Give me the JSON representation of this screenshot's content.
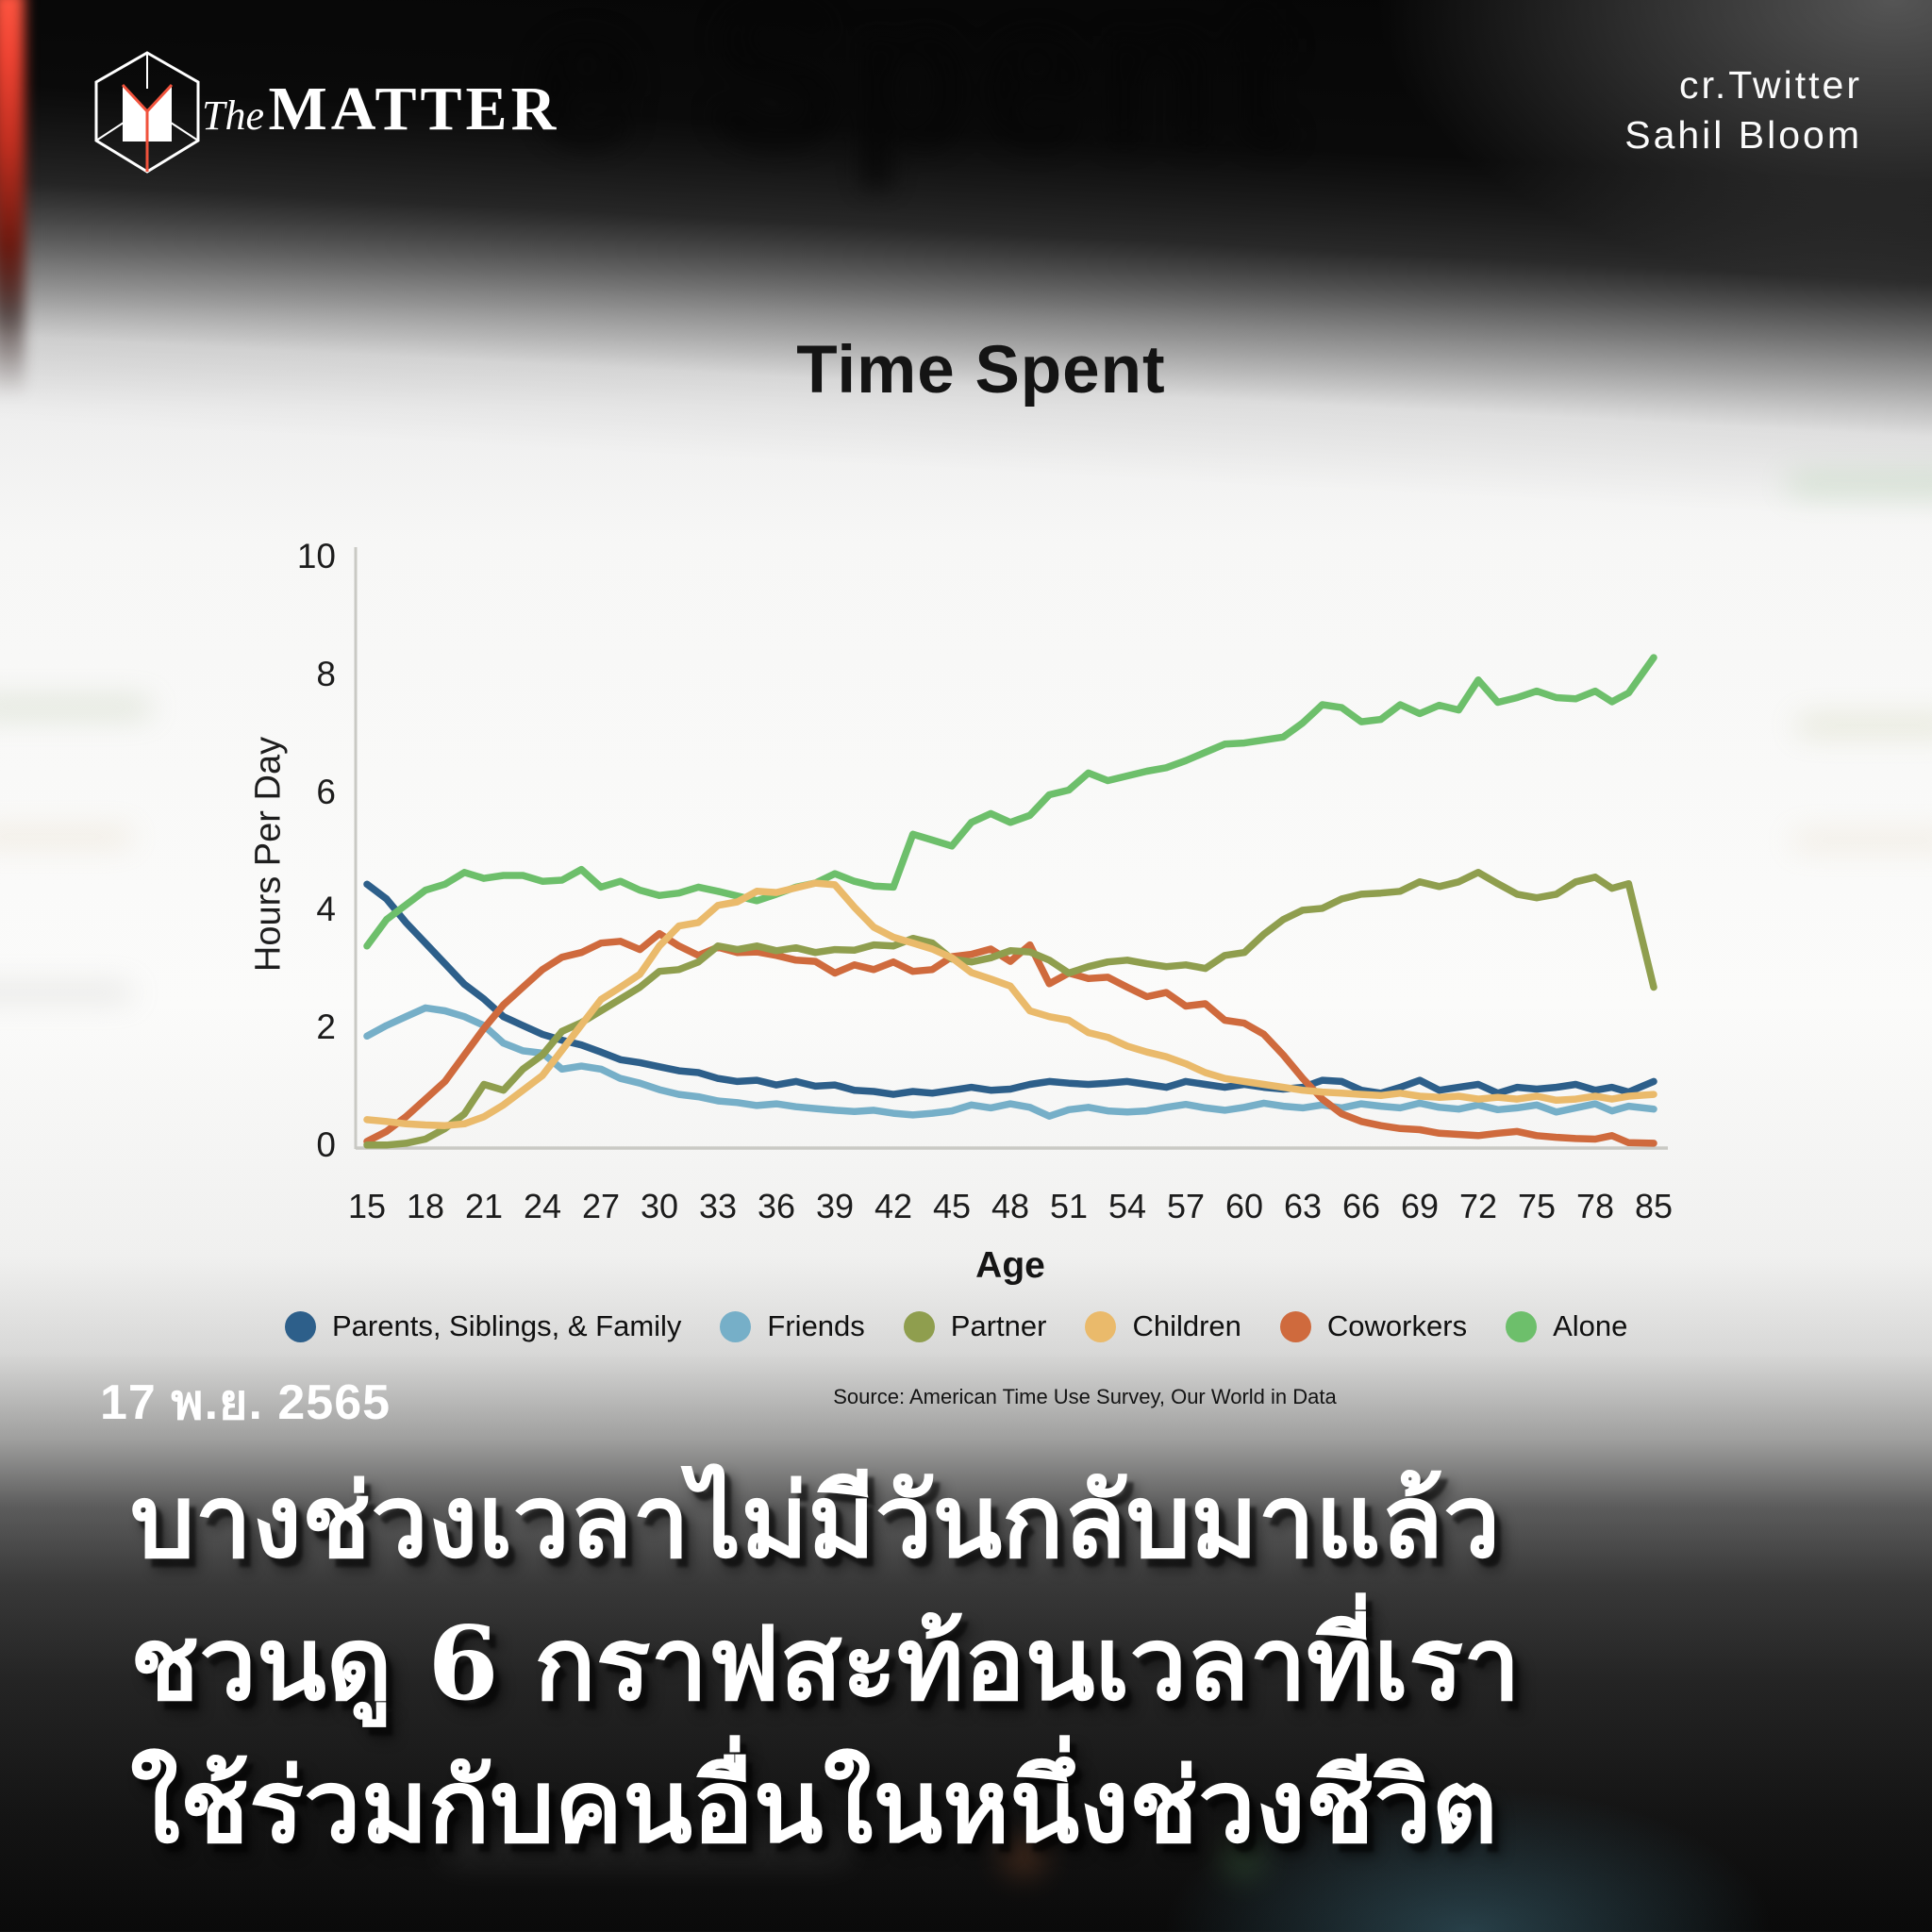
{
  "background": {
    "blurred_title": "e Spent"
  },
  "header": {
    "logo_the": "The",
    "logo_matter": "MATTER",
    "credit_line1": "cr.Twitter",
    "credit_line2": "Sahil Bloom"
  },
  "chart": {
    "title": "Time Spent",
    "y_axis_label": "Hours Per Day",
    "x_axis_label": "Age",
    "source": "Source: American Time Use Survey, Our World in Data"
  },
  "legend": [
    {
      "label": "Parents, Siblings, & Family",
      "color": "#2d5f8a"
    },
    {
      "label": "Friends",
      "color": "#76afc8"
    },
    {
      "label": "Partner",
      "color": "#8f9e4e"
    },
    {
      "label": "Children",
      "color": "#eaba6b"
    },
    {
      "label": "Coworkers",
      "color": "#cf6a3d"
    },
    {
      "label": "Alone",
      "color": "#6dbf6b"
    }
  ],
  "chart_data": {
    "type": "line",
    "title": "Time Spent",
    "xlabel": "Age",
    "ylabel": "Hours Per Day",
    "ylim": [
      0,
      10
    ],
    "y_ticks": [
      0,
      2,
      4,
      6,
      8,
      10
    ],
    "x_ticks": [
      15,
      18,
      21,
      24,
      27,
      30,
      33,
      36,
      39,
      42,
      45,
      48,
      51,
      54,
      57,
      60,
      63,
      66,
      69,
      72,
      75,
      78,
      85
    ],
    "grid": false,
    "legend_position": "bottom",
    "x": [
      15,
      16,
      17,
      18,
      19,
      20,
      21,
      22,
      23,
      24,
      25,
      26,
      27,
      28,
      29,
      30,
      31,
      32,
      33,
      34,
      35,
      36,
      37,
      38,
      39,
      40,
      41,
      42,
      43,
      44,
      45,
      46,
      47,
      48,
      49,
      50,
      51,
      52,
      53,
      54,
      55,
      56,
      57,
      58,
      59,
      60,
      61,
      62,
      63,
      64,
      65,
      66,
      67,
      68,
      69,
      70,
      71,
      72,
      73,
      74,
      75,
      76,
      77,
      78,
      80,
      82,
      85
    ],
    "series": [
      {
        "name": "Parents, Siblings, & Family",
        "color": "#2d5f8a",
        "values": [
          4.45,
          4.2,
          3.8,
          3.45,
          3.1,
          2.75,
          2.5,
          2.2,
          2.05,
          1.9,
          1.8,
          1.72,
          1.6,
          1.47,
          1.42,
          1.35,
          1.28,
          1.25,
          1.15,
          1.1,
          1.12,
          1.04,
          1.1,
          1.02,
          1.04,
          0.95,
          0.93,
          0.88,
          0.93,
          0.9,
          0.95,
          1.0,
          0.95,
          0.97,
          1.05,
          1.1,
          1.07,
          1.05,
          1.07,
          1.1,
          1.05,
          1.0,
          1.1,
          1.05,
          1.0,
          1.05,
          1.0,
          0.97,
          1.0,
          1.12,
          1.1,
          0.95,
          0.9,
          1.0,
          1.12,
          0.95,
          1.0,
          1.05,
          0.9,
          1.0,
          0.97,
          1.0,
          1.05,
          0.95,
          1.0,
          0.92,
          1.1
        ]
      },
      {
        "name": "Friends",
        "color": "#76afc8",
        "values": [
          1.87,
          2.05,
          2.2,
          2.35,
          2.3,
          2.2,
          2.05,
          1.75,
          1.62,
          1.58,
          1.31,
          1.36,
          1.31,
          1.15,
          1.07,
          0.96,
          0.88,
          0.84,
          0.77,
          0.74,
          0.69,
          0.72,
          0.67,
          0.64,
          0.61,
          0.59,
          0.61,
          0.56,
          0.53,
          0.56,
          0.6,
          0.7,
          0.65,
          0.72,
          0.66,
          0.51,
          0.62,
          0.66,
          0.6,
          0.58,
          0.6,
          0.66,
          0.71,
          0.65,
          0.61,
          0.66,
          0.73,
          0.68,
          0.65,
          0.7,
          0.65,
          0.72,
          0.68,
          0.65,
          0.73,
          0.66,
          0.63,
          0.7,
          0.62,
          0.65,
          0.7,
          0.58,
          0.65,
          0.72,
          0.6,
          0.68,
          0.63
        ]
      },
      {
        "name": "Partner",
        "color": "#8f9e4e",
        "values": [
          0.02,
          0.02,
          0.05,
          0.12,
          0.3,
          0.55,
          1.05,
          0.95,
          1.31,
          1.55,
          1.95,
          2.1,
          2.3,
          2.5,
          2.7,
          2.97,
          3.0,
          3.13,
          3.4,
          3.34,
          3.4,
          3.32,
          3.37,
          3.29,
          3.34,
          3.33,
          3.42,
          3.4,
          3.53,
          3.45,
          3.18,
          3.13,
          3.2,
          3.32,
          3.3,
          3.16,
          2.94,
          3.05,
          3.13,
          3.16,
          3.1,
          3.05,
          3.08,
          3.02,
          3.24,
          3.29,
          3.6,
          3.85,
          4.01,
          4.04,
          4.2,
          4.28,
          4.3,
          4.33,
          4.49,
          4.41,
          4.49,
          4.65,
          4.46,
          4.28,
          4.22,
          4.28,
          4.49,
          4.57,
          4.38,
          4.46,
          2.7
        ]
      },
      {
        "name": "Children",
        "color": "#eaba6b",
        "values": [
          0.45,
          0.42,
          0.38,
          0.36,
          0.35,
          0.38,
          0.5,
          0.7,
          0.95,
          1.2,
          1.63,
          2.06,
          2.49,
          2.7,
          2.92,
          3.4,
          3.74,
          3.8,
          4.09,
          4.15,
          4.33,
          4.31,
          4.39,
          4.47,
          4.44,
          4.06,
          3.72,
          3.55,
          3.45,
          3.35,
          3.2,
          2.95,
          2.84,
          2.72,
          2.3,
          2.2,
          2.14,
          1.93,
          1.85,
          1.7,
          1.6,
          1.52,
          1.4,
          1.25,
          1.15,
          1.1,
          1.05,
          1.0,
          0.95,
          0.92,
          0.9,
          0.88,
          0.86,
          0.9,
          0.85,
          0.83,
          0.85,
          0.8,
          0.83,
          0.8,
          0.85,
          0.78,
          0.8,
          0.85,
          0.8,
          0.85,
          0.88
        ]
      },
      {
        "name": "Coworkers",
        "color": "#cf6a3d",
        "values": [
          0.08,
          0.25,
          0.5,
          0.8,
          1.1,
          1.55,
          2.0,
          2.4,
          2.7,
          3.0,
          3.21,
          3.29,
          3.45,
          3.48,
          3.34,
          3.61,
          3.4,
          3.24,
          3.38,
          3.29,
          3.3,
          3.24,
          3.16,
          3.14,
          2.94,
          3.08,
          3.0,
          3.13,
          2.97,
          3.0,
          3.22,
          3.26,
          3.35,
          3.14,
          3.42,
          2.76,
          2.94,
          2.85,
          2.87,
          2.7,
          2.54,
          2.61,
          2.38,
          2.42,
          2.14,
          2.09,
          1.9,
          1.55,
          1.15,
          0.8,
          0.55,
          0.42,
          0.35,
          0.3,
          0.28,
          0.22,
          0.2,
          0.18,
          0.22,
          0.25,
          0.18,
          0.15,
          0.13,
          0.12,
          0.18,
          0.06,
          0.05
        ]
      },
      {
        "name": "Alone",
        "color": "#6dbf6b",
        "values": [
          3.4,
          3.85,
          4.1,
          4.35,
          4.45,
          4.65,
          4.55,
          4.6,
          4.6,
          4.5,
          4.52,
          4.7,
          4.4,
          4.5,
          4.35,
          4.26,
          4.3,
          4.4,
          4.33,
          4.25,
          4.17,
          4.28,
          4.4,
          4.47,
          4.63,
          4.5,
          4.42,
          4.4,
          5.3,
          5.2,
          5.1,
          5.5,
          5.65,
          5.5,
          5.62,
          5.97,
          6.05,
          6.34,
          6.21,
          6.29,
          6.37,
          6.43,
          6.55,
          6.69,
          6.83,
          6.85,
          6.9,
          6.95,
          7.19,
          7.5,
          7.45,
          7.21,
          7.25,
          7.5,
          7.35,
          7.49,
          7.41,
          7.92,
          7.54,
          7.62,
          7.73,
          7.62,
          7.6,
          7.73,
          7.55,
          7.7,
          8.3
        ]
      }
    ],
    "paint_order": [
      1,
      0,
      4,
      5,
      2,
      3
    ]
  },
  "footer": {
    "date": "17 พ.ย. 2565",
    "headline_line1": "บางช่วงเวลาไม่มีวันกลับมาแล้ว",
    "headline_line2": "ชวนดู 6 กราฟสะท้อนเวลาที่เรา",
    "headline_line3": "ใช้ร่วมกับคนอื่นในหนึ่งช่วงชีวิต"
  }
}
